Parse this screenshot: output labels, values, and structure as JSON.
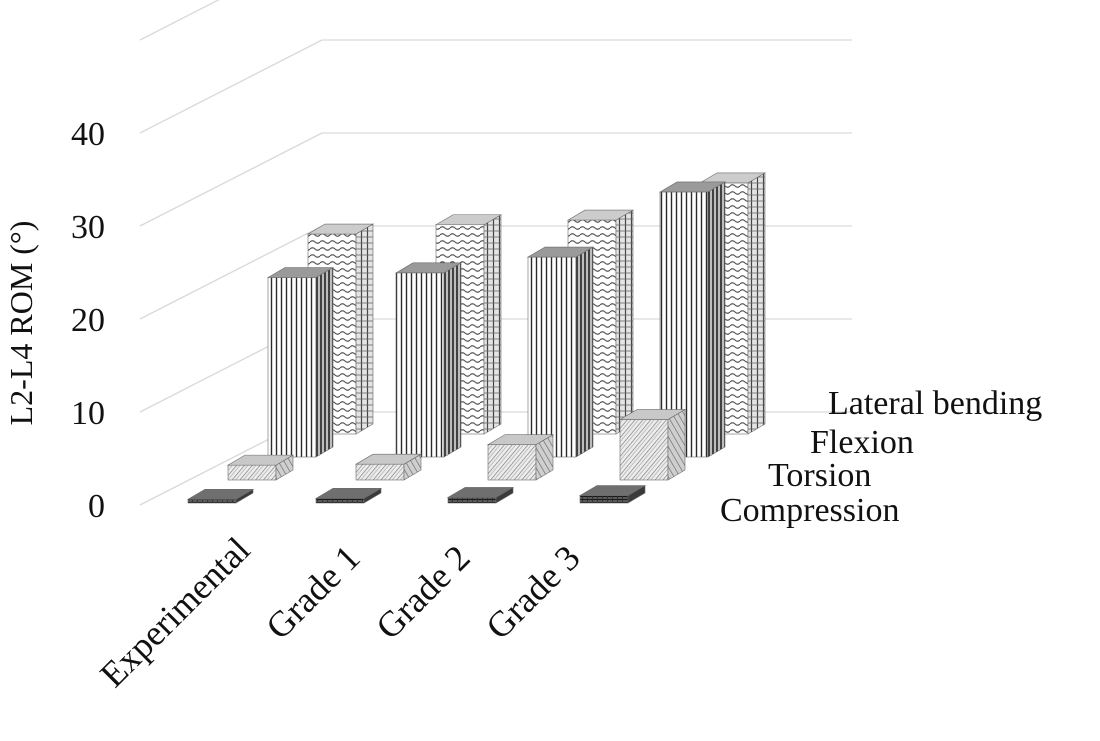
{
  "chart_data": {
    "type": "bar",
    "title": "",
    "xlabel": "",
    "ylabel": "L2-L4 ROM (°)",
    "ylim": [
      0,
      40
    ],
    "yticks": [
      0,
      10,
      20,
      30,
      40
    ],
    "grid": true,
    "categories": [
      "Experimental",
      "Grade 1",
      "Grade 2",
      "Grade 3"
    ],
    "series": [
      {
        "name": "Lateral bending",
        "values": [
          21.5,
          22.5,
          23,
          27
        ]
      },
      {
        "name": "Flexion",
        "values": [
          19.3,
          19.8,
          21.5,
          28.5
        ]
      },
      {
        "name": "Torsion",
        "values": [
          1.6,
          1.7,
          3.8,
          6.5
        ]
      },
      {
        "name": "Compression",
        "values": [
          0.4,
          0.5,
          0.6,
          0.8
        ]
      }
    ]
  }
}
